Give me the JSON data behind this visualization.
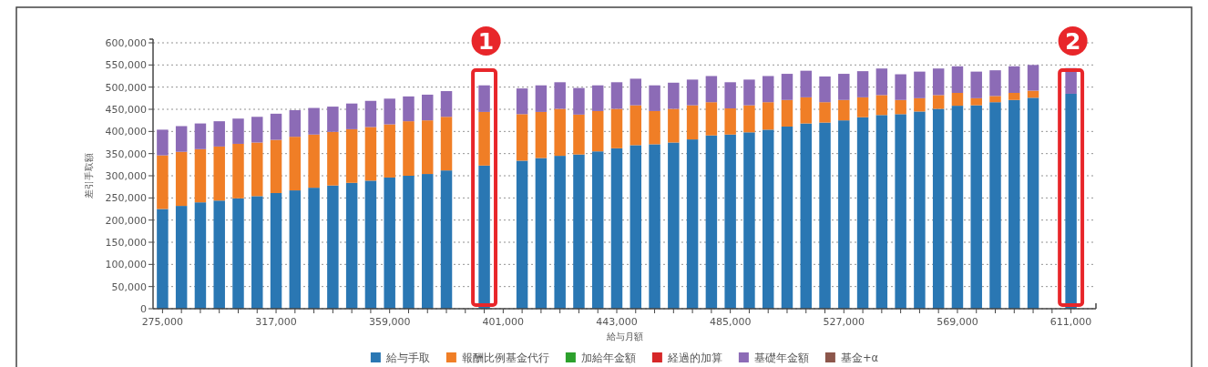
{
  "chart_data": {
    "type": "bar",
    "stacked": true,
    "xlabel": "給与月額",
    "ylabel": "差引手取額",
    "categories": [
      "275,000",
      null,
      null,
      null,
      null,
      null,
      "317,000",
      null,
      null,
      null,
      null,
      null,
      "359,000",
      null,
      null,
      null,
      null,
      null,
      "401,000",
      null,
      null,
      null,
      null,
      null,
      "443,000",
      null,
      null,
      null,
      null,
      null,
      "485,000",
      null,
      null,
      null,
      null,
      null,
      "527,000",
      null,
      null,
      null,
      null,
      null,
      "569,000",
      null,
      null,
      null,
      null,
      null,
      "611,000"
    ],
    "ylim": [
      0,
      600000
    ],
    "yticks": [
      {
        "value": 0,
        "label": "0"
      },
      {
        "value": 50000,
        "label": "50,000"
      },
      {
        "value": 100000,
        "label": "100,000"
      },
      {
        "value": 150000,
        "label": "150,000"
      },
      {
        "value": 200000,
        "label": "200,000"
      },
      {
        "value": 250000,
        "label": "250,000"
      },
      {
        "value": 300000,
        "label": "300,000"
      },
      {
        "value": 350000,
        "label": "350,000"
      },
      {
        "value": 400000,
        "label": "400,000"
      },
      {
        "value": 450000,
        "label": "450,000"
      },
      {
        "value": 500000,
        "label": "500,000"
      },
      {
        "value": 550000,
        "label": "550,000"
      },
      {
        "value": 600000,
        "label": "600,000"
      }
    ],
    "grid": "y",
    "legend": "bottom",
    "annotations": [
      "1",
      "2"
    ],
    "series": [
      {
        "name": "給与手取",
        "color": "#2a77b3",
        "values": [
          225000,
          232000,
          240000,
          244000,
          249000,
          254000,
          261000,
          267000,
          273000,
          278000,
          284000,
          289000,
          296000,
          300000,
          304000,
          312000,
          null,
          323000,
          null,
          334000,
          340000,
          345000,
          348000,
          355000,
          362000,
          369000,
          371000,
          375000,
          382000,
          391000,
          393000,
          398000,
          404000,
          411000,
          418000,
          420000,
          425000,
          432000,
          437000,
          439000,
          445000,
          451000,
          458000,
          459000,
          466000,
          471000,
          476000,
          null,
          485000
        ]
      },
      {
        "name": "報酬比例基金代行",
        "color": "#f07e26",
        "values": [
          121000,
          122000,
          120000,
          122000,
          123000,
          121000,
          120000,
          121000,
          120000,
          121000,
          121000,
          121000,
          120000,
          123000,
          121000,
          121000,
          null,
          121000,
          null,
          105000,
          104000,
          106000,
          90000,
          91000,
          89000,
          90000,
          75000,
          76000,
          77000,
          75000,
          59000,
          61000,
          62000,
          60000,
          59000,
          46000,
          46000,
          45000,
          45000,
          32000,
          30000,
          31000,
          29000,
          16000,
          14000,
          16000,
          16000,
          null,
          0
        ]
      },
      {
        "name": "加給年金額",
        "color": "#2ca02c",
        "values": [
          0,
          0,
          0,
          0,
          0,
          0,
          0,
          0,
          0,
          0,
          0,
          0,
          0,
          0,
          0,
          0,
          null,
          0,
          null,
          0,
          0,
          0,
          0,
          0,
          0,
          0,
          0,
          0,
          0,
          0,
          0,
          0,
          0,
          0,
          0,
          0,
          0,
          0,
          0,
          0,
          0,
          0,
          0,
          0,
          0,
          0,
          0,
          null,
          0
        ]
      },
      {
        "name": "経過的加算",
        "color": "#d62728",
        "values": [
          0,
          0,
          0,
          0,
          0,
          0,
          0,
          0,
          0,
          0,
          0,
          0,
          0,
          0,
          0,
          0,
          null,
          0,
          null,
          0,
          0,
          0,
          0,
          0,
          0,
          0,
          0,
          0,
          0,
          0,
          0,
          0,
          0,
          0,
          0,
          0,
          0,
          0,
          0,
          0,
          0,
          0,
          0,
          0,
          0,
          0,
          0,
          null,
          0
        ]
      },
      {
        "name": "基礎年金額",
        "color": "#8c6bb6",
        "values": [
          58000,
          58000,
          58000,
          57000,
          57000,
          58000,
          59000,
          60000,
          60000,
          57000,
          58000,
          59000,
          58000,
          56000,
          58000,
          58000,
          null,
          60000,
          null,
          58000,
          60000,
          60000,
          60000,
          58000,
          60000,
          60000,
          58000,
          59000,
          58000,
          59000,
          59000,
          58000,
          59000,
          59000,
          60000,
          58000,
          59000,
          59000,
          60000,
          58000,
          60000,
          60000,
          60000,
          60000,
          58000,
          60000,
          58000,
          null,
          58000
        ]
      },
      {
        "name": "基金+α",
        "color": "#8c564b",
        "values": [
          0,
          0,
          0,
          0,
          0,
          0,
          0,
          0,
          0,
          0,
          0,
          0,
          0,
          0,
          0,
          0,
          null,
          0,
          null,
          0,
          0,
          0,
          0,
          0,
          0,
          0,
          0,
          0,
          0,
          0,
          0,
          0,
          0,
          0,
          0,
          0,
          0,
          0,
          0,
          0,
          0,
          0,
          0,
          0,
          0,
          0,
          0,
          null,
          0
        ]
      }
    ]
  }
}
